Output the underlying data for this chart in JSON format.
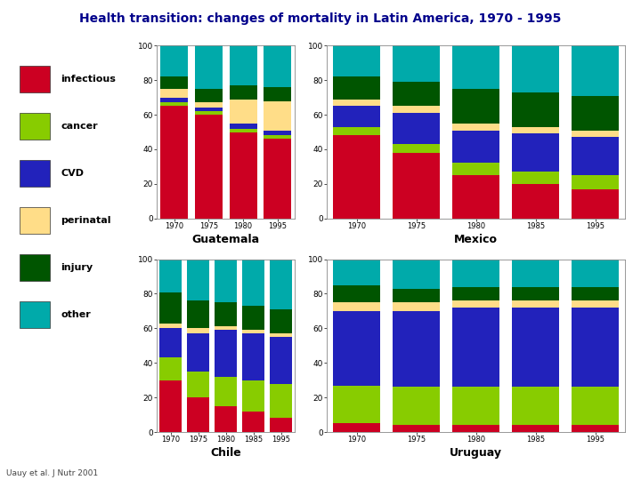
{
  "title": "Health transition: changes of mortality in Latin America, 1970 - 1995",
  "title_color": "#00008B",
  "footnote": "Uauy et al. J Nutr 2001",
  "categories": [
    "infectious",
    "cancer",
    "CVD",
    "perinatal",
    "injury",
    "other"
  ],
  "colors": [
    "#CC0022",
    "#88CC00",
    "#2222BB",
    "#FFDD88",
    "#005500",
    "#00AAAA"
  ],
  "legend_labels": [
    "infectious",
    "cancer",
    "CVD",
    "perinatal",
    "injury",
    "other"
  ],
  "charts": {
    "Guatemala": {
      "years": [
        "1970",
        "1975",
        "1980",
        "1995"
      ],
      "data": {
        "infectious": [
          65,
          60,
          50,
          46
        ],
        "cancer": [
          2,
          2,
          2,
          2
        ],
        "CVD": [
          3,
          2,
          3,
          3
        ],
        "perinatal": [
          5,
          3,
          14,
          17
        ],
        "injury": [
          7,
          8,
          8,
          8
        ],
        "other": [
          18,
          25,
          23,
          24
        ]
      }
    },
    "Mexico": {
      "years": [
        "1970",
        "1975",
        "1980",
        "1985",
        "1995"
      ],
      "data": {
        "infectious": [
          48,
          38,
          25,
          20,
          17
        ],
        "cancer": [
          5,
          5,
          7,
          7,
          8
        ],
        "CVD": [
          12,
          18,
          19,
          22,
          22
        ],
        "perinatal": [
          4,
          4,
          4,
          4,
          4
        ],
        "injury": [
          13,
          14,
          20,
          20,
          20
        ],
        "other": [
          18,
          21,
          25,
          27,
          29
        ]
      }
    },
    "Chile": {
      "years": [
        "1970",
        "1975",
        "1980",
        "1985",
        "1995"
      ],
      "data": {
        "infectious": [
          30,
          20,
          15,
          12,
          8
        ],
        "cancer": [
          13,
          15,
          17,
          18,
          20
        ],
        "CVD": [
          17,
          22,
          27,
          27,
          27
        ],
        "perinatal": [
          3,
          3,
          2,
          2,
          2
        ],
        "injury": [
          18,
          16,
          14,
          14,
          14
        ],
        "other": [
          19,
          24,
          25,
          27,
          29
        ]
      }
    },
    "Uruguay": {
      "years": [
        "1970",
        "1975",
        "1980",
        "1985",
        "1995"
      ],
      "data": {
        "infectious": [
          5,
          4,
          4,
          4,
          4
        ],
        "cancer": [
          22,
          22,
          22,
          22,
          22
        ],
        "CVD": [
          43,
          44,
          46,
          46,
          46
        ],
        "perinatal": [
          5,
          5,
          4,
          4,
          4
        ],
        "injury": [
          10,
          8,
          8,
          8,
          8
        ],
        "other": [
          15,
          17,
          16,
          16,
          16
        ]
      }
    }
  },
  "background_color": "#FFFFFF"
}
